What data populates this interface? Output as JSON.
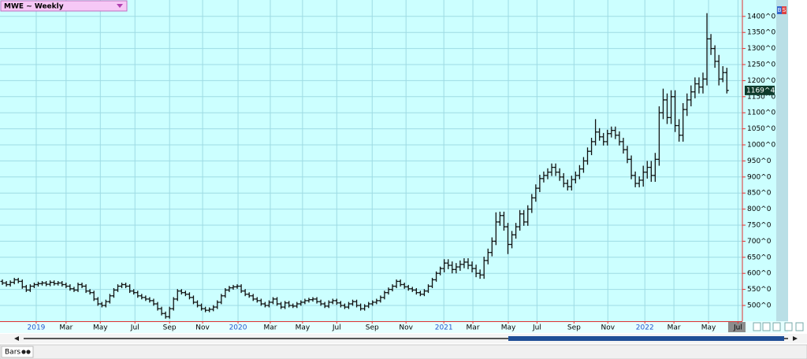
{
  "header": {
    "title": "MWE ~ Weekly"
  },
  "toolbar": {
    "buy": "B",
    "sell": "S",
    "mode": "Bars"
  },
  "chart_data": {
    "type": "ohlc",
    "color": "#111111",
    "grid": true,
    "last_price": {
      "value": 1169.5,
      "label": "1169^4"
    },
    "ylim": [
      451,
      1451
    ],
    "yticks": [
      {
        "value": 500,
        "label": "500^0"
      },
      {
        "value": 550,
        "label": "550^0"
      },
      {
        "value": 600,
        "label": "600^0"
      },
      {
        "value": 650,
        "label": "650^0"
      },
      {
        "value": 700,
        "label": "700^0"
      },
      {
        "value": 750,
        "label": "750^0"
      },
      {
        "value": 800,
        "label": "800^0"
      },
      {
        "value": 850,
        "label": "850^0"
      },
      {
        "value": 900,
        "label": "900^0"
      },
      {
        "value": 950,
        "label": "950^0"
      },
      {
        "value": 1000,
        "label": "1000^0"
      },
      {
        "value": 1050,
        "label": "1050^0"
      },
      {
        "value": 1100,
        "label": "1100^0"
      },
      {
        "value": 1150,
        "label": "1150^0"
      },
      {
        "value": 1200,
        "label": "1200^0"
      },
      {
        "value": 1250,
        "label": "1250^0"
      },
      {
        "value": 1300,
        "label": "1300^0"
      },
      {
        "value": 1350,
        "label": "1350^0"
      },
      {
        "value": 1400,
        "label": "1400^0"
      }
    ],
    "xlim": [
      -0.6,
      185.9
    ],
    "xticks": [
      {
        "value": 8.5,
        "label": "2019"
      },
      {
        "value": 16,
        "label": "Mar"
      },
      {
        "value": 24.6,
        "label": "May"
      },
      {
        "value": 33.3,
        "label": "Jul"
      },
      {
        "value": 42,
        "label": "Sep"
      },
      {
        "value": 50.3,
        "label": "Nov"
      },
      {
        "value": 59.2,
        "label": "2020"
      },
      {
        "value": 67.3,
        "label": "Mar"
      },
      {
        "value": 75.4,
        "label": "May"
      },
      {
        "value": 84,
        "label": "Jul"
      },
      {
        "value": 92.9,
        "label": "Sep"
      },
      {
        "value": 101.4,
        "label": "Nov"
      },
      {
        "value": 110.9,
        "label": "2021"
      },
      {
        "value": 118.2,
        "label": "Mar"
      },
      {
        "value": 127.1,
        "label": "May"
      },
      {
        "value": 134.3,
        "label": "Jul"
      },
      {
        "value": 143.6,
        "label": "Sep"
      },
      {
        "value": 152.1,
        "label": "Nov"
      },
      {
        "value": 161.4,
        "label": "2022"
      },
      {
        "value": 168.7,
        "label": "Mar"
      },
      {
        "value": 177.4,
        "label": "May"
      },
      {
        "value": 184.8,
        "label": "Jul"
      }
    ],
    "x": [
      0,
      1,
      2,
      3,
      4,
      5,
      6,
      7,
      8,
      9,
      10,
      11,
      12,
      13,
      14,
      15,
      16,
      17,
      18,
      19,
      20,
      21,
      22,
      23,
      24,
      25,
      26,
      27,
      28,
      29,
      30,
      31,
      32,
      33,
      34,
      35,
      36,
      37,
      38,
      39,
      40,
      41,
      42,
      43,
      44,
      45,
      46,
      47,
      48,
      49,
      50,
      51,
      52,
      53,
      54,
      55,
      56,
      57,
      58,
      59,
      60,
      61,
      62,
      63,
      64,
      65,
      66,
      67,
      68,
      69,
      70,
      71,
      72,
      73,
      74,
      75,
      76,
      77,
      78,
      79,
      80,
      81,
      82,
      83,
      84,
      85,
      86,
      87,
      88,
      89,
      90,
      91,
      92,
      93,
      94,
      95,
      96,
      97,
      98,
      99,
      100,
      101,
      102,
      103,
      104,
      105,
      106,
      107,
      108,
      109,
      110,
      111,
      112,
      113,
      114,
      115,
      116,
      117,
      118,
      119,
      120,
      121,
      122,
      123,
      124,
      125,
      126,
      127,
      128,
      129,
      130,
      131,
      132,
      133,
      134,
      135,
      136,
      137,
      138,
      139,
      140,
      141,
      142,
      143,
      144,
      145,
      146,
      147,
      148,
      149,
      150,
      151,
      152,
      153,
      154,
      155,
      156,
      157,
      158,
      159,
      160,
      161,
      162,
      163,
      164,
      165,
      166,
      167,
      168,
      169,
      170,
      171,
      172,
      173,
      174,
      175,
      176,
      177,
      178,
      179,
      180,
      181,
      182
    ],
    "open": [
      575,
      570,
      565,
      572,
      580,
      575,
      558,
      548,
      560,
      565,
      568,
      570,
      566,
      572,
      568,
      570,
      565,
      560,
      552,
      548,
      565,
      560,
      545,
      540,
      520,
      505,
      500,
      512,
      530,
      548,
      560,
      565,
      560,
      545,
      540,
      530,
      525,
      520,
      515,
      505,
      490,
      475,
      465,
      490,
      520,
      545,
      540,
      535,
      525,
      510,
      500,
      490,
      485,
      488,
      495,
      510,
      530,
      548,
      555,
      558,
      560,
      545,
      535,
      530,
      520,
      515,
      505,
      500,
      510,
      520,
      505,
      495,
      508,
      500,
      498,
      505,
      510,
      515,
      518,
      520,
      512,
      505,
      498,
      510,
      515,
      508,
      500,
      495,
      505,
      512,
      500,
      490,
      498,
      505,
      510,
      515,
      525,
      540,
      550,
      560,
      575,
      565,
      558,
      552,
      548,
      540,
      535,
      545,
      560,
      580,
      600,
      615,
      632,
      625,
      612,
      620,
      628,
      635,
      625,
      615,
      600,
      595,
      640,
      665,
      700,
      760,
      780,
      745,
      690,
      720,
      745,
      785,
      760,
      800,
      835,
      865,
      895,
      905,
      915,
      930,
      915,
      900,
      880,
      870,
      892,
      905,
      925,
      950,
      980,
      1010,
      1040,
      1025,
      1010,
      1035,
      1045,
      1030,
      1010,
      985,
      955,
      905,
      880,
      890,
      915,
      930,
      905,
      955,
      1100,
      1140,
      1085,
      1150,
      1060,
      1030,
      1110,
      1140,
      1165,
      1190,
      1180,
      1205,
      1330,
      1300,
      1260,
      1205,
      1225
    ],
    "high": [
      581,
      576,
      578,
      586,
      586,
      581,
      564,
      566,
      571,
      574,
      576,
      576,
      578,
      578,
      576,
      576,
      571,
      566,
      558,
      571,
      571,
      566,
      551,
      546,
      526,
      511,
      518,
      536,
      554,
      566,
      571,
      571,
      566,
      551,
      546,
      536,
      531,
      526,
      521,
      511,
      496,
      481,
      496,
      526,
      551,
      551,
      546,
      541,
      531,
      516,
      506,
      496,
      494,
      501,
      516,
      536,
      554,
      561,
      564,
      566,
      566,
      551,
      541,
      536,
      526,
      521,
      511,
      516,
      526,
      526,
      511,
      514,
      514,
      506,
      511,
      516,
      521,
      524,
      526,
      526,
      518,
      511,
      516,
      521,
      521,
      514,
      506,
      511,
      518,
      518,
      506,
      504,
      511,
      516,
      521,
      531,
      546,
      556,
      566,
      581,
      581,
      571,
      564,
      558,
      554,
      546,
      551,
      566,
      586,
      606,
      621,
      644,
      644,
      637,
      632,
      640,
      647,
      647,
      637,
      627,
      612,
      652,
      677,
      712,
      790,
      792,
      792,
      757,
      732,
      757,
      797,
      797,
      812,
      847,
      877,
      907,
      917,
      927,
      942,
      942,
      927,
      912,
      892,
      904,
      917,
      937,
      962,
      992,
      1022,
      1080,
      1052,
      1037,
      1047,
      1057,
      1057,
      1042,
      1022,
      997,
      967,
      917,
      902,
      935,
      950,
      950,
      975,
      1120,
      1175,
      1160,
      1170,
      1170,
      1080,
      1130,
      1160,
      1185,
      1210,
      1210,
      1225,
      1410,
      1345,
      1310,
      1280,
      1245,
      1240
    ],
    "low": [
      564,
      559,
      559,
      566,
      569,
      552,
      542,
      542,
      554,
      559,
      562,
      560,
      560,
      562,
      562,
      559,
      554,
      546,
      542,
      542,
      554,
      539,
      534,
      514,
      499,
      494,
      494,
      506,
      524,
      542,
      554,
      554,
      539,
      534,
      524,
      519,
      514,
      509,
      499,
      484,
      469,
      459,
      459,
      484,
      514,
      534,
      529,
      519,
      504,
      494,
      484,
      479,
      479,
      482,
      489,
      504,
      524,
      542,
      549,
      552,
      539,
      529,
      524,
      514,
      509,
      499,
      494,
      494,
      504,
      499,
      489,
      489,
      494,
      492,
      492,
      499,
      504,
      509,
      512,
      506,
      499,
      492,
      492,
      504,
      502,
      494,
      489,
      489,
      499,
      494,
      484,
      484,
      492,
      499,
      504,
      509,
      519,
      534,
      544,
      554,
      559,
      552,
      546,
      542,
      534,
      529,
      529,
      539,
      554,
      574,
      594,
      603,
      613,
      600,
      600,
      608,
      616,
      613,
      603,
      588,
      583,
      583,
      628,
      653,
      688,
      748,
      733,
      660,
      678,
      708,
      733,
      748,
      748,
      788,
      823,
      853,
      883,
      893,
      903,
      903,
      888,
      868,
      858,
      858,
      880,
      893,
      913,
      938,
      968,
      998,
      1013,
      998,
      998,
      1023,
      1018,
      998,
      973,
      943,
      893,
      868,
      868,
      870,
      895,
      885,
      885,
      935,
      1080,
      1065,
      1065,
      1040,
      1010,
      1010,
      1090,
      1120,
      1145,
      1160,
      1160,
      1185,
      1280,
      1240,
      1185,
      1195,
      1160
    ],
    "close": [
      570,
      565,
      572,
      580,
      575,
      558,
      548,
      560,
      565,
      568,
      570,
      566,
      572,
      568,
      570,
      565,
      560,
      552,
      548,
      565,
      560,
      545,
      540,
      520,
      505,
      500,
      512,
      530,
      548,
      560,
      565,
      560,
      545,
      540,
      530,
      525,
      520,
      515,
      505,
      490,
      475,
      465,
      490,
      520,
      545,
      540,
      535,
      525,
      510,
      500,
      490,
      485,
      488,
      495,
      510,
      530,
      548,
      555,
      558,
      560,
      545,
      535,
      530,
      520,
      515,
      505,
      500,
      510,
      520,
      505,
      495,
      508,
      500,
      498,
      505,
      510,
      515,
      518,
      520,
      512,
      505,
      498,
      510,
      515,
      508,
      500,
      495,
      505,
      512,
      500,
      490,
      498,
      505,
      510,
      515,
      525,
      540,
      550,
      560,
      575,
      565,
      558,
      552,
      548,
      540,
      535,
      545,
      560,
      580,
      600,
      615,
      632,
      625,
      612,
      620,
      628,
      635,
      625,
      615,
      600,
      595,
      640,
      665,
      700,
      760,
      780,
      745,
      690,
      720,
      745,
      785,
      760,
      800,
      835,
      865,
      895,
      905,
      915,
      930,
      915,
      900,
      880,
      870,
      892,
      905,
      925,
      950,
      980,
      1010,
      1040,
      1025,
      1010,
      1035,
      1045,
      1030,
      1010,
      985,
      955,
      905,
      880,
      890,
      915,
      930,
      905,
      955,
      1100,
      1140,
      1085,
      1150,
      1060,
      1030,
      1110,
      1140,
      1165,
      1190,
      1180,
      1205,
      1330,
      1300,
      1260,
      1205,
      1225,
      1169.5
    ]
  }
}
